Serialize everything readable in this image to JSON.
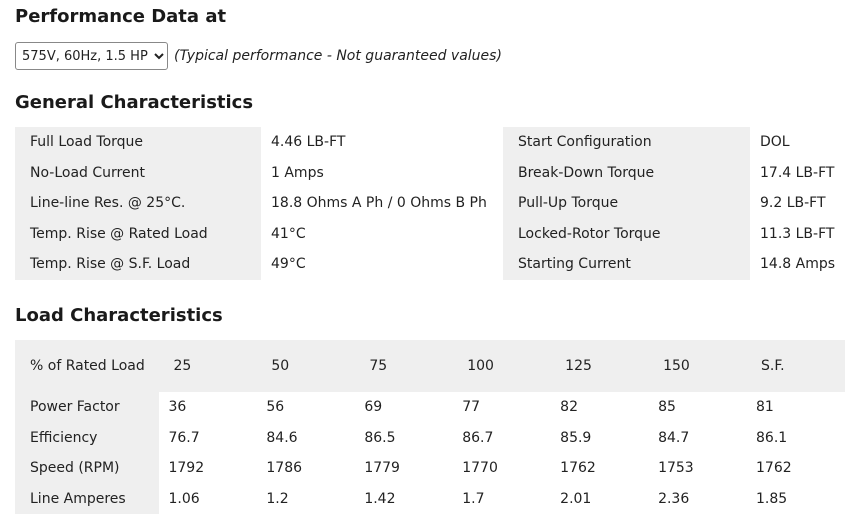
{
  "header": {
    "title": "Performance Data at",
    "select_value": "575V, 60Hz, 1.5 HP",
    "note": "(Typical performance - Not guaranteed values)"
  },
  "general": {
    "title": "General Characteristics",
    "rows": [
      [
        "Full Load Torque",
        "4.46 LB-FT",
        "Start Configuration",
        "DOL"
      ],
      [
        "No-Load Current",
        "1 Amps",
        "Break-Down Torque",
        "17.4 LB-FT"
      ],
      [
        "Line-line Res. @ 25°C.",
        "18.8 Ohms A Ph / 0 Ohms B Ph",
        "Pull-Up Torque",
        "9.2 LB-FT"
      ],
      [
        "Temp. Rise @ Rated Load",
        "41°C",
        "Locked-Rotor Torque",
        "11.3 LB-FT"
      ],
      [
        "Temp. Rise @ S.F. Load",
        "49°C",
        "Starting Current",
        "14.8 Amps"
      ]
    ]
  },
  "load": {
    "title": "Load Characteristics",
    "header": [
      "% of Rated Load",
      "25",
      "50",
      "75",
      "100",
      "125",
      "150",
      "S.F."
    ],
    "rows": [
      [
        "Power Factor",
        "36",
        "56",
        "69",
        "77",
        "82",
        "85",
        "81"
      ],
      [
        "Efficiency",
        "76.7",
        "84.6",
        "86.5",
        "86.7",
        "85.9",
        "84.7",
        "86.1"
      ],
      [
        "Speed (RPM)",
        "1792",
        "1786",
        "1779",
        "1770",
        "1762",
        "1753",
        "1762"
      ],
      [
        "Line Amperes",
        "1.06",
        "1.2",
        "1.42",
        "1.7",
        "2.01",
        "2.36",
        "1.85"
      ]
    ]
  }
}
